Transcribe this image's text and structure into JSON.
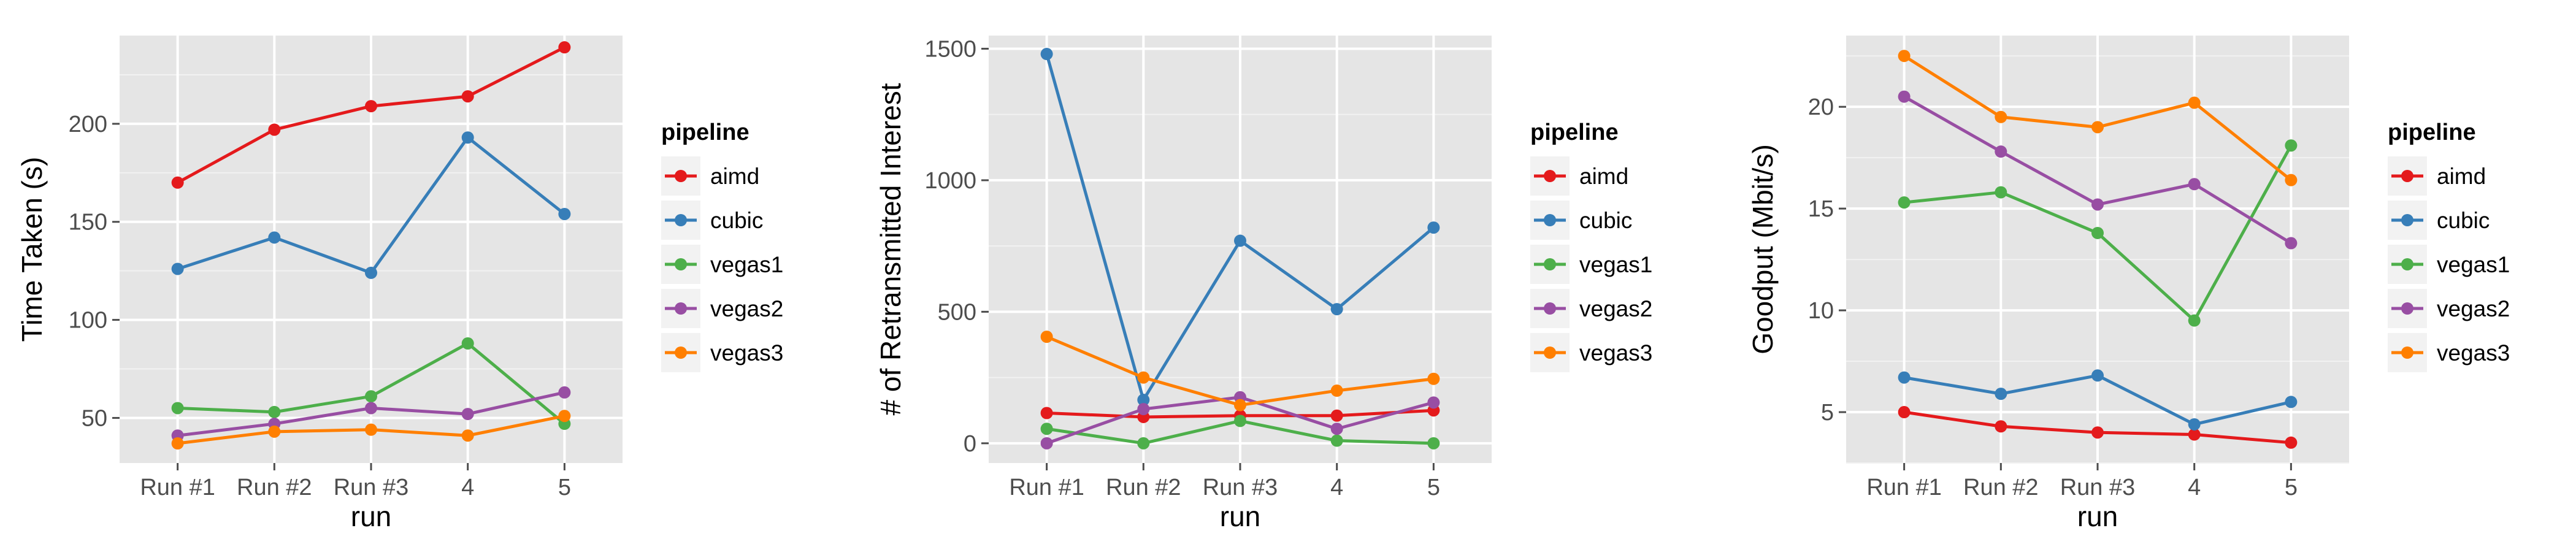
{
  "chart_data": [
    {
      "type": "line",
      "categories": [
        "Run #1",
        "Run #2",
        "Run #3",
        "4",
        "5"
      ],
      "xlabel": "run",
      "ylabel": "Time Taken (s)",
      "ylim": [
        27,
        245
      ],
      "yticks": [
        50,
        100,
        150,
        200
      ],
      "grid": true,
      "legend": "right",
      "legend_title": "pipeline",
      "series": [
        {
          "name": "aimd",
          "color": "#e41a1c",
          "values": [
            170,
            197,
            209,
            214,
            239
          ]
        },
        {
          "name": "cubic",
          "color": "#377eb8",
          "values": [
            126,
            142,
            124,
            193,
            154
          ]
        },
        {
          "name": "vegas1",
          "color": "#4daf4a",
          "values": [
            55,
            53,
            61,
            88,
            47
          ]
        },
        {
          "name": "vegas2",
          "color": "#984ea3",
          "values": [
            41,
            47,
            55,
            52,
            63
          ]
        },
        {
          "name": "vegas3",
          "color": "#ff7f00",
          "values": [
            37,
            43,
            44,
            41,
            51
          ]
        }
      ]
    },
    {
      "type": "line",
      "categories": [
        "Run #1",
        "Run #2",
        "Run #3",
        "4",
        "5"
      ],
      "xlabel": "run",
      "ylabel": "# of Retransmitted Interest",
      "ylim": [
        -75,
        1550
      ],
      "yticks": [
        0,
        500,
        1000,
        1500
      ],
      "grid": true,
      "legend": "right",
      "legend_title": "pipeline",
      "series": [
        {
          "name": "aimd",
          "color": "#e41a1c",
          "values": [
            115,
            100,
            105,
            105,
            125
          ]
        },
        {
          "name": "cubic",
          "color": "#377eb8",
          "values": [
            1480,
            165,
            770,
            510,
            820
          ]
        },
        {
          "name": "vegas1",
          "color": "#4daf4a",
          "values": [
            55,
            0,
            85,
            10,
            0
          ]
        },
        {
          "name": "vegas2",
          "color": "#984ea3",
          "values": [
            0,
            130,
            175,
            55,
            155
          ]
        },
        {
          "name": "vegas3",
          "color": "#ff7f00",
          "values": [
            405,
            250,
            145,
            200,
            245
          ]
        }
      ]
    },
    {
      "type": "line",
      "categories": [
        "Run #1",
        "Run #2",
        "Run #3",
        "4",
        "5"
      ],
      "xlabel": "run",
      "ylabel": "Goodput (Mbit/s)",
      "ylim": [
        2.5,
        23.5
      ],
      "yticks": [
        5,
        10,
        15,
        20
      ],
      "grid": true,
      "legend": "right",
      "legend_title": "pipeline",
      "series": [
        {
          "name": "aimd",
          "color": "#e41a1c",
          "values": [
            5.0,
            4.3,
            4.0,
            3.9,
            3.5
          ]
        },
        {
          "name": "cubic",
          "color": "#377eb8",
          "values": [
            6.7,
            5.9,
            6.8,
            4.4,
            5.5
          ]
        },
        {
          "name": "vegas1",
          "color": "#4daf4a",
          "values": [
            15.3,
            15.8,
            13.8,
            9.5,
            18.1
          ]
        },
        {
          "name": "vegas2",
          "color": "#984ea3",
          "values": [
            20.5,
            17.8,
            15.2,
            16.2,
            13.3
          ]
        },
        {
          "name": "vegas3",
          "color": "#ff7f00",
          "values": [
            22.5,
            19.5,
            19.0,
            20.2,
            16.4
          ]
        }
      ]
    }
  ]
}
